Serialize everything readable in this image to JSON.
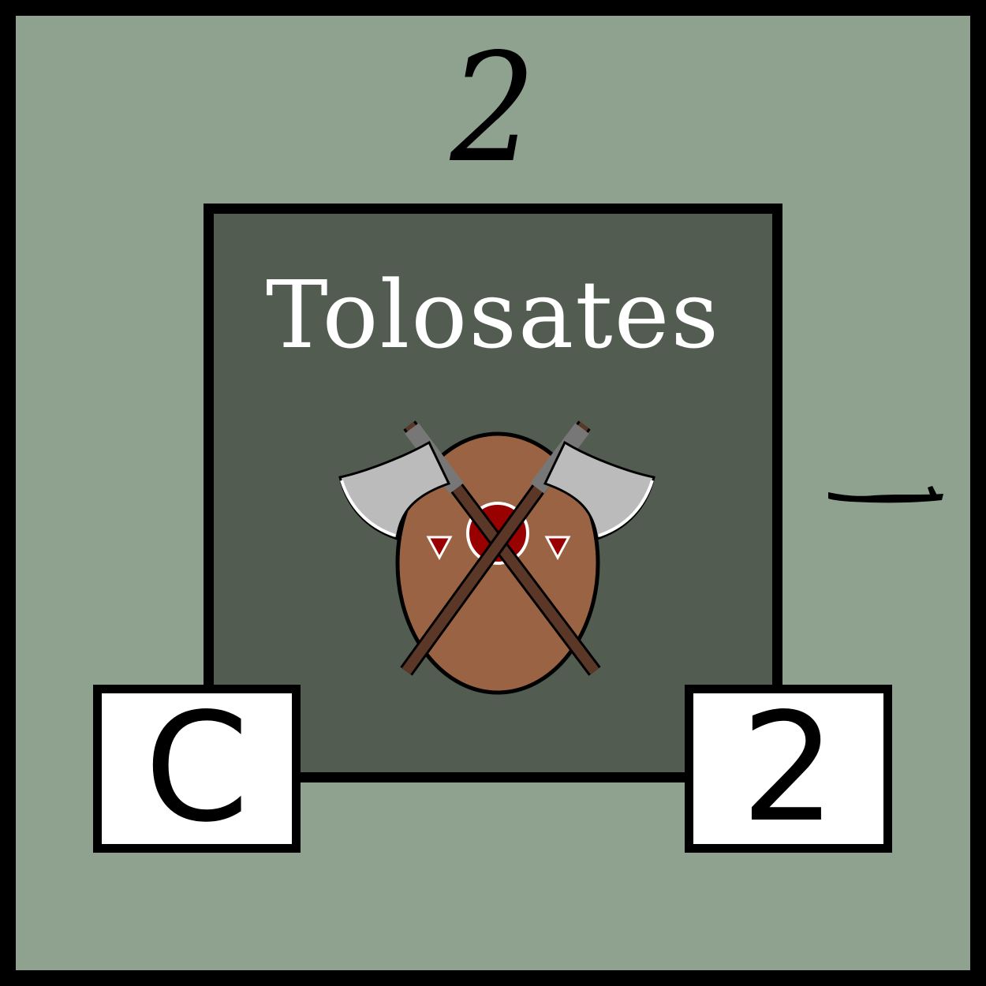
{
  "counter": {
    "top_value": "2",
    "unit_name": "Tolosates",
    "class_code": "C",
    "strength": "2",
    "emblem_icon": "shield-crossed-axes-icon",
    "colors": {
      "background": "#8fa18f",
      "panel": "#525c51",
      "shield": "#9a6444",
      "boss": "#990000",
      "axe_head": "#bbbbbb",
      "axe_handle": "#5a3726"
    }
  }
}
